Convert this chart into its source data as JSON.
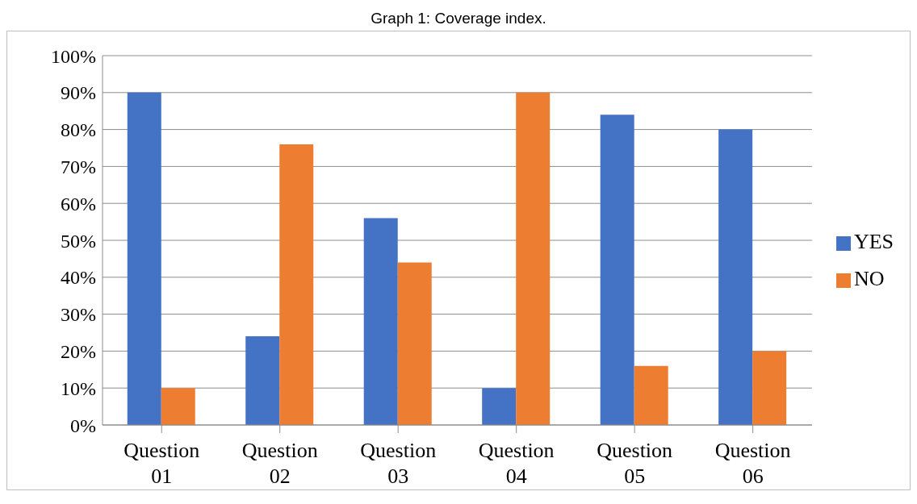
{
  "chart_data": {
    "type": "bar",
    "title": "Graph 1: Coverage index.",
    "categories": [
      "Question 01",
      "Question 02",
      "Question 03",
      "Question 04",
      "Question 05",
      "Question 06"
    ],
    "series": [
      {
        "name": "YES",
        "color": "#4472c4",
        "values": [
          90,
          24,
          56,
          10,
          84,
          80
        ]
      },
      {
        "name": "NO",
        "color": "#ed7d31",
        "values": [
          10,
          76,
          44,
          90,
          16,
          20
        ]
      }
    ],
    "ylim": [
      0,
      100
    ],
    "yticks": [
      {
        "value": 0,
        "label": "0%"
      },
      {
        "value": 10,
        "label": "10%"
      },
      {
        "value": 20,
        "label": "20%"
      },
      {
        "value": 30,
        "label": "30%"
      },
      {
        "value": 40,
        "label": "40%"
      },
      {
        "value": 50,
        "label": "50%"
      },
      {
        "value": 60,
        "label": "60%"
      },
      {
        "value": 70,
        "label": "70%"
      },
      {
        "value": 80,
        "label": "80%"
      },
      {
        "value": 90,
        "label": "90%"
      },
      {
        "value": 100,
        "label": "100%"
      }
    ],
    "grid": "y",
    "legend": "right"
  }
}
